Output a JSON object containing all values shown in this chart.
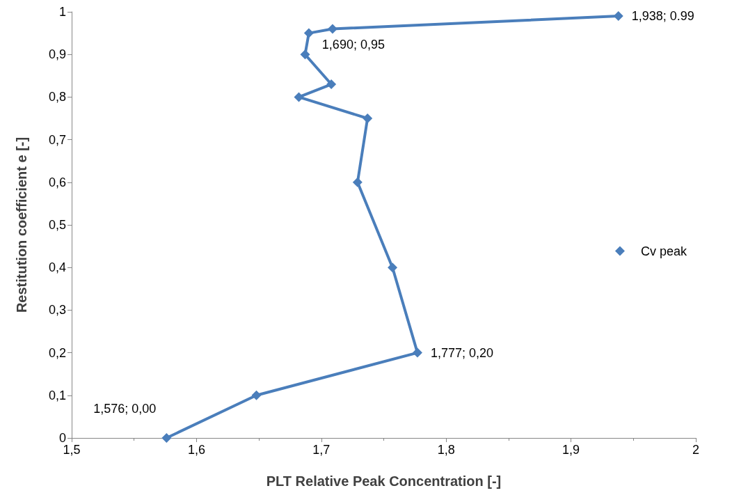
{
  "chart_data": {
    "type": "line",
    "xlabel": "PLT Relative Peak Concentration [-]",
    "ylabel": "Restitution coefficient e [-]",
    "xlim": [
      1.5,
      2
    ],
    "xticks": [
      {
        "value": 1.5,
        "label": "1,5"
      },
      {
        "value": 1.6,
        "label": "1,6"
      },
      {
        "value": 1.7,
        "label": "1,7"
      },
      {
        "value": 1.8,
        "label": "1,8"
      },
      {
        "value": 1.9,
        "label": "1,9"
      },
      2
    ],
    "ylim": [
      0,
      1
    ],
    "yticks": [
      0,
      {
        "value": 0.1,
        "label": "0,1"
      },
      {
        "value": 0.2,
        "label": "0,2"
      },
      {
        "value": 0.3,
        "label": "0,3"
      },
      {
        "value": 0.4,
        "label": "0,4"
      },
      {
        "value": 0.5,
        "label": "0,5"
      },
      {
        "value": 0.6,
        "label": "0,6"
      },
      {
        "value": 0.7,
        "label": "0,7"
      },
      {
        "value": 0.8,
        "label": "0,8"
      },
      {
        "value": 0.9,
        "label": "0,9"
      },
      1
    ],
    "grid": false,
    "legend": "right",
    "marker": "diamond",
    "line_style": "solid",
    "series": [
      {
        "name": "Cv peak",
        "color": "#4a7ebb",
        "x": [
          1.576,
          1.648,
          1.777,
          1.757,
          1.729,
          1.737,
          1.682,
          1.708,
          1.687,
          1.69,
          1.709,
          1.938
        ],
        "values": [
          0,
          0.1,
          0.2,
          0.4,
          0.6,
          0.75,
          0.8,
          0.83,
          0.9,
          0.95,
          0.96,
          0.99
        ],
        "value_labels": [
          "1,576; 0,00",
          null,
          "1,777; 0,20",
          null,
          null,
          null,
          null,
          null,
          null,
          "1,690; 0,95",
          null,
          "1,938; 0.99"
        ]
      }
    ]
  }
}
